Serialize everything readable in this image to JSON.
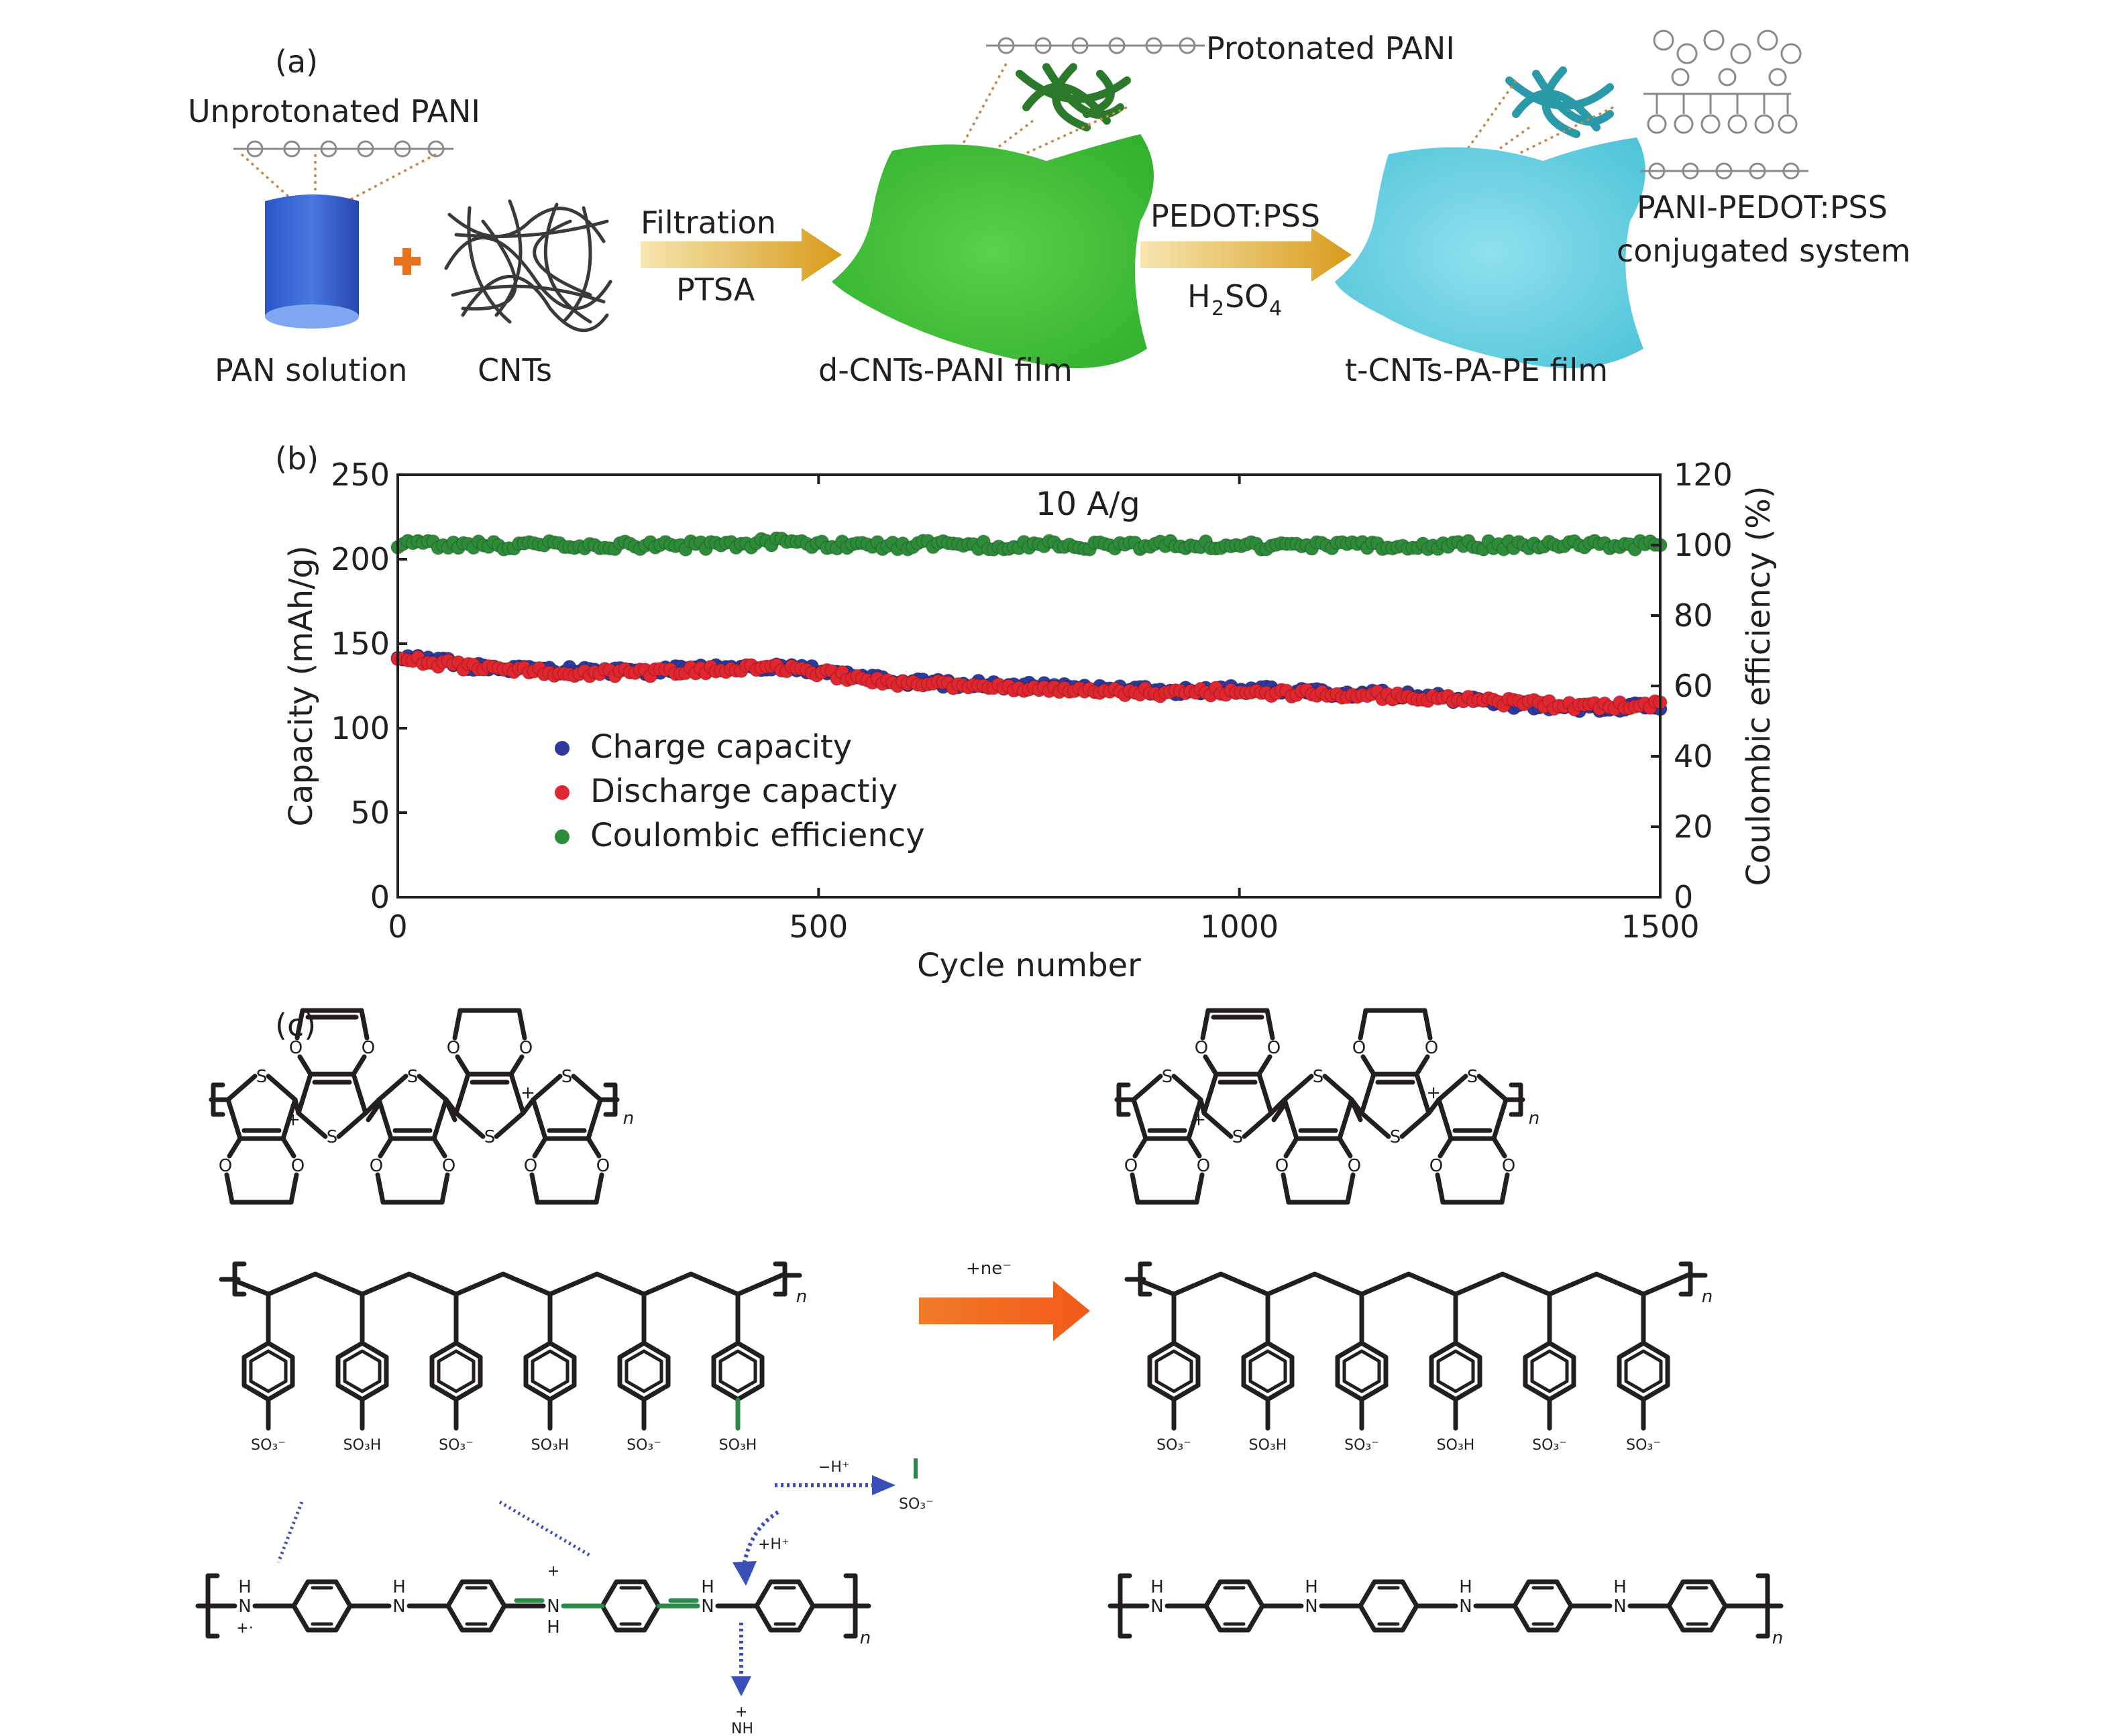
{
  "panel_a": {
    "label": "(a)",
    "unprotonated": "Unprotonated PANI",
    "pan_solution": "PAN solution",
    "cnts": "CNTs",
    "filtration": "Filtration",
    "ptsa": "PTSA",
    "protonated": "Protonated PANI",
    "dfilm": "d-CNTs-PANI film",
    "pedot": "PEDOT:PSS",
    "h2so4_main": "H",
    "h2so4_sub1": "2",
    "h2so4_mid": "SO",
    "h2so4_sub2": "4",
    "tfilm": "t-CNTs-PA-PE film",
    "conj1": "PANI-PEDOT:PSS",
    "conj2": "conjugated system"
  },
  "panel_b": {
    "label": "(b)"
  },
  "panel_c": {
    "label": "(c)",
    "arrow_label": "+ne⁻",
    "n": "n",
    "so3m": "SO₃⁻",
    "so3h": "SO₃H",
    "minus_h": "−H⁺",
    "plus_h": "+H⁺",
    "s": "S",
    "o": "O",
    "h": "H",
    "nn": "N",
    "plus": "+",
    "nh_plus": "NH",
    "radical": "+·"
  },
  "chart_data": {
    "type": "scatter",
    "annotation": "10 A/g",
    "xlabel": "Cycle number",
    "ylabel": "Capacity (mAh/g)",
    "y2label": "Coulombic efficiency (%)",
    "xlim": [
      0,
      1500
    ],
    "ylim": [
      0,
      250
    ],
    "y2lim": [
      0,
      120
    ],
    "xticks": [
      0,
      500,
      1000,
      1500
    ],
    "yticks": [
      0,
      50,
      100,
      150,
      200,
      250
    ],
    "y2ticks": [
      0,
      20,
      40,
      60,
      80,
      100,
      120
    ],
    "grid": false,
    "legend_position": "lower-left",
    "series": [
      {
        "name": "Charge capacity",
        "color": "#2e3a9e",
        "axis": "left",
        "x": [
          0,
          100,
          200,
          300,
          400,
          450,
          500,
          600,
          700,
          800,
          900,
          1000,
          1100,
          1200,
          1300,
          1400,
          1500
        ],
        "values": [
          143,
          136,
          134,
          134,
          136,
          137,
          134,
          127,
          126,
          124,
          122,
          123,
          121,
          120,
          115,
          112,
          113
        ]
      },
      {
        "name": "Discharge capactiy",
        "color": "#e0262f",
        "axis": "left",
        "x": [
          0,
          100,
          200,
          300,
          400,
          450,
          500,
          600,
          700,
          800,
          900,
          1000,
          1100,
          1200,
          1300,
          1400,
          1500
        ],
        "values": [
          142,
          135,
          133,
          133,
          135,
          136,
          133,
          126,
          125,
          123,
          121,
          122,
          120,
          119,
          116,
          113,
          114
        ]
      },
      {
        "name": "Coulombic efficiency",
        "color": "#2e8b3a",
        "axis": "right",
        "x": [
          0,
          100,
          200,
          300,
          400,
          450,
          500,
          600,
          700,
          800,
          900,
          1000,
          1100,
          1200,
          1300,
          1400,
          1500
        ],
        "values": [
          100,
          100,
          100,
          100,
          100,
          101,
          100,
          100,
          100,
          100,
          100,
          100,
          100,
          100,
          100,
          100,
          100
        ]
      }
    ]
  }
}
